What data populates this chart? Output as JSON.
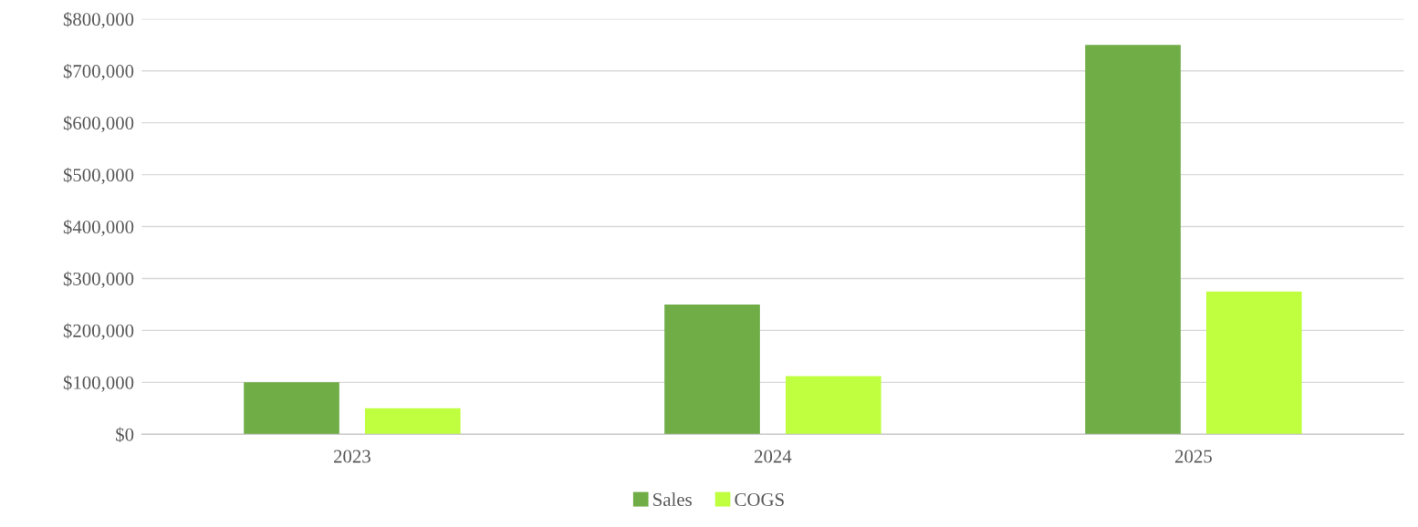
{
  "chart_data": {
    "type": "bar",
    "categories": [
      "2023",
      "2024",
      "2025"
    ],
    "series": [
      {
        "name": "Sales",
        "color": "#70ad47",
        "values": [
          100000,
          250000,
          750000
        ]
      },
      {
        "name": "COGS",
        "color": "#bfff3f",
        "values": [
          50000,
          112000,
          275000
        ]
      }
    ],
    "ylim": [
      0,
      800000
    ],
    "yticks": [
      {
        "value": 0,
        "label": "$0"
      },
      {
        "value": 100000,
        "label": "$100,000"
      },
      {
        "value": 200000,
        "label": "$200,000"
      },
      {
        "value": 300000,
        "label": "$300,000"
      },
      {
        "value": 400000,
        "label": "$400,000"
      },
      {
        "value": 500000,
        "label": "$500,000"
      },
      {
        "value": 600000,
        "label": "$600,000"
      },
      {
        "value": 700000,
        "label": "$700,000"
      },
      {
        "value": 800000,
        "label": "$800,000"
      }
    ],
    "grid": "y",
    "legend": "bottom"
  }
}
